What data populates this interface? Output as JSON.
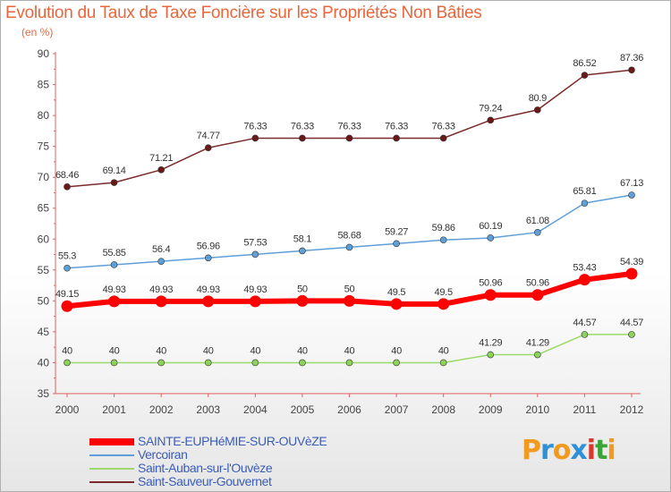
{
  "title": "Evolution du Taux de Taxe Foncière sur les Propriétés Non Bâties",
  "unit_label": "(en %)",
  "logo": {
    "letters": [
      "P",
      "r",
      "o",
      "x",
      "i",
      "t",
      "i"
    ],
    "colors": [
      "#f29a1f",
      "#2e90d6",
      "#f29a1f",
      "#2e90d6",
      "#d63a2a",
      "#3aa43a",
      "#f29a1f"
    ]
  },
  "chart_data": {
    "type": "line",
    "title": "Evolution du Taux de Taxe Foncière sur les Propriétés Non Bâties",
    "ylabel": "(en %)",
    "xlabel": "",
    "x": [
      "2000",
      "2001",
      "2002",
      "2003",
      "2004",
      "2005",
      "2006",
      "2007",
      "2008",
      "2009",
      "2010",
      "2011",
      "2012"
    ],
    "ylim": [
      35,
      90
    ],
    "yticks": [
      35,
      40,
      45,
      50,
      55,
      60,
      65,
      70,
      75,
      80,
      85,
      90
    ],
    "grid": false,
    "legend_position": "bottom-left",
    "series": [
      {
        "name": "SAINTE-EUPHéMIE-SUR-OUVèZE",
        "color": "#ff0000",
        "marker_color": "#ff0000",
        "width": 6,
        "marker": 6.5,
        "highlight": true,
        "values": [
          49.15,
          49.93,
          49.93,
          49.93,
          49.93,
          50,
          50,
          49.5,
          49.5,
          50.96,
          50.96,
          53.43,
          54.39
        ],
        "labels": [
          "49.15",
          "49.93",
          "49.93",
          "49.93",
          "49.93",
          "50",
          "50",
          "49.5",
          "49.5",
          "50.96",
          "50.96",
          "53.43",
          "54.39"
        ]
      },
      {
        "name": "Vercoiran",
        "color": "#5f9fd8",
        "marker_color": "#5f9fd8",
        "width": 1.5,
        "marker": 3.5,
        "values": [
          55.3,
          55.85,
          56.4,
          56.96,
          57.53,
          58.1,
          58.68,
          59.27,
          59.86,
          60.19,
          61.08,
          65.81,
          67.13
        ],
        "labels": [
          "55.3",
          "55.85",
          "56.4",
          "56.96",
          "57.53",
          "58.1",
          "58.68",
          "59.27",
          "59.86",
          "60.19",
          "61.08",
          "65.81",
          "67.13"
        ]
      },
      {
        "name": "Saint-Auban-sur-l'Ouvèze",
        "color": "#9ad96a",
        "marker_color": "#8dd35a",
        "width": 1.5,
        "marker": 3.5,
        "values": [
          40,
          40,
          40,
          40,
          40,
          40,
          40,
          40,
          40,
          41.29,
          41.29,
          44.57,
          44.57
        ],
        "labels": [
          "40",
          "40",
          "40",
          "40",
          "40",
          "40",
          "40",
          "40",
          "40",
          "41.29",
          "41.29",
          "44.57",
          "44.57"
        ]
      },
      {
        "name": "Saint-Sauveur-Gouvernet",
        "color": "#7a2a2a",
        "marker_color": "#6a1818",
        "width": 1.5,
        "marker": 3.5,
        "values": [
          68.46,
          69.14,
          71.21,
          74.77,
          76.33,
          76.33,
          76.33,
          76.33,
          76.33,
          79.24,
          80.9,
          86.52,
          87.36
        ],
        "labels": [
          "68.46",
          "69.14",
          "71.21",
          "74.77",
          "76.33",
          "76.33",
          "76.33",
          "76.33",
          "76.33",
          "79.24",
          "80.9",
          "86.52",
          "87.36"
        ]
      }
    ]
  }
}
